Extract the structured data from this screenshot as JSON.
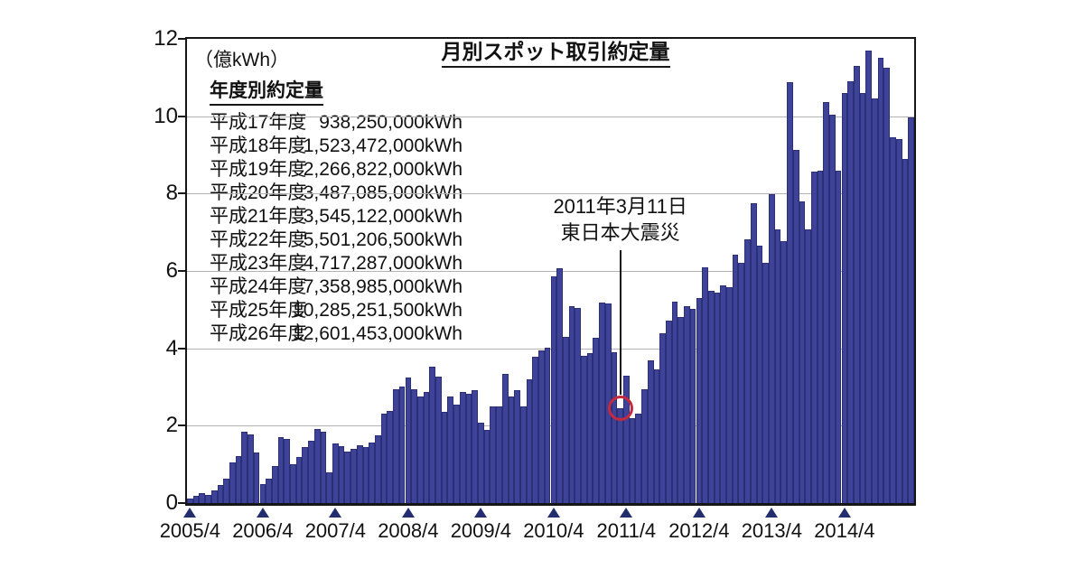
{
  "page": {
    "background": "#ffffff"
  },
  "title": "月別スポット取引約定量",
  "unit_label": "（億kWh）",
  "annual_table": {
    "header": "年度別約定量",
    "rows": [
      {
        "era": "平成17年度",
        "value": "938,250,000kWh"
      },
      {
        "era": "平成18年度",
        "value": "1,523,472,000kWh"
      },
      {
        "era": "平成19年度",
        "value": "2,266,822,000kWh"
      },
      {
        "era": "平成20年度",
        "value": "3,487,085,000kWh"
      },
      {
        "era": "平成21年度",
        "value": "3,545,122,000kWh"
      },
      {
        "era": "平成22年度",
        "value": "5,501,206,500kWh"
      },
      {
        "era": "平成23年度",
        "value": "4,717,287,000kWh"
      },
      {
        "era": "平成24年度",
        "value": "7,358,985,000kWh"
      },
      {
        "era": "平成25年度",
        "value": "10,285,251,500kWh"
      },
      {
        "era": "平成26年度",
        "value": "12,601,453,000kWh"
      }
    ]
  },
  "annotation": {
    "line1": "2011年3月11日",
    "line2": "東日本大震災",
    "circle_color": "#c5293d"
  },
  "colors": {
    "bar_fill": "#3e4399",
    "bar_border": "#2b3076",
    "gridline": "#b3b3b3",
    "axis": "#161616",
    "tick_triangle": "#232e6e",
    "annotation_red": "#c5293d"
  },
  "chart_data": {
    "type": "bar",
    "title": "月別スポット取引約定量",
    "xlabel": "",
    "ylabel": "億kWh",
    "ylim": [
      0,
      12
    ],
    "yticks": [
      0,
      2,
      4,
      6,
      8,
      10,
      12
    ],
    "grid": true,
    "x_start_month": "2005/4",
    "x_end_month": "2015/3",
    "x_tick_labels": [
      "2005/4",
      "2006/4",
      "2007/4",
      "2008/4",
      "2009/4",
      "2010/4",
      "2011/4",
      "2012/4",
      "2013/4",
      "2014/4"
    ],
    "x_tick_month_indices": [
      0,
      12,
      24,
      36,
      48,
      60,
      72,
      84,
      96,
      108
    ],
    "earthquake_month_index": 71,
    "earthquake_month": "2011/3",
    "monthly_values_oku_kwh": [
      0.11,
      0.19,
      0.25,
      0.21,
      0.33,
      0.46,
      0.63,
      1.05,
      1.22,
      1.85,
      1.77,
      1.31,
      0.5,
      0.62,
      0.95,
      1.7,
      1.66,
      1.0,
      1.18,
      1.45,
      1.6,
      1.92,
      1.85,
      0.8,
      1.55,
      1.48,
      1.33,
      1.4,
      1.5,
      1.45,
      1.57,
      1.75,
      2.3,
      2.38,
      2.95,
      3.01,
      3.25,
      2.95,
      2.75,
      2.87,
      3.52,
      3.27,
      2.35,
      2.75,
      2.55,
      2.87,
      2.82,
      2.92,
      2.08,
      1.9,
      2.51,
      2.5,
      3.35,
      2.75,
      2.91,
      2.51,
      3.19,
      3.78,
      3.95,
      4.02,
      5.85,
      6.06,
      4.3,
      5.1,
      5.05,
      3.8,
      3.88,
      4.28,
      5.18,
      5.15,
      3.9,
      2.46,
      3.3,
      2.2,
      2.3,
      2.95,
      3.7,
      3.45,
      4.4,
      4.72,
      5.2,
      4.82,
      5.1,
      5.03,
      5.29,
      6.1,
      5.48,
      5.44,
      5.63,
      5.59,
      6.42,
      6.21,
      6.81,
      7.74,
      6.66,
      6.22,
      7.98,
      7.07,
      6.77,
      10.88,
      9.14,
      7.8,
      7.07,
      8.56,
      8.6,
      10.36,
      10.05,
      8.6,
      10.6,
      10.9,
      11.3,
      10.6,
      11.7,
      10.45,
      11.5,
      11.25,
      9.45,
      9.4,
      8.9,
      9.96
    ]
  }
}
